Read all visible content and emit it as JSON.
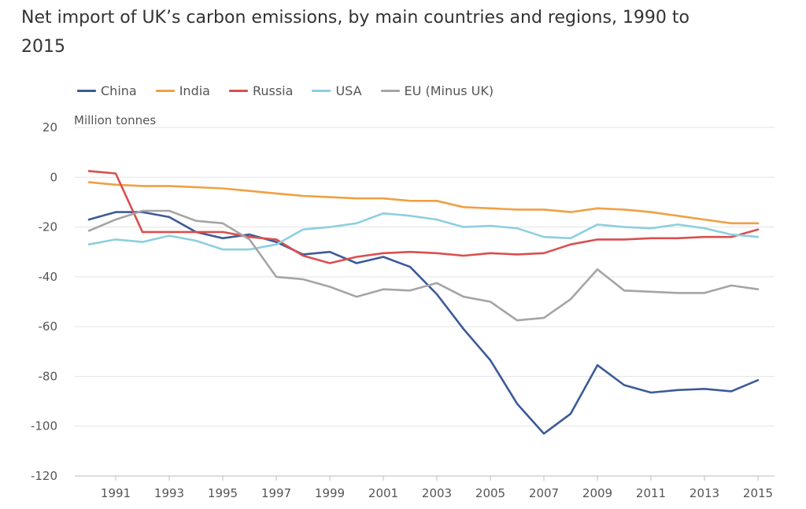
{
  "chart_data": {
    "type": "line",
    "title": "Net import of UK’s carbon emissions, by main countries and regions, 1990 to 2015",
    "ylabel": "Million tonnes",
    "xlabel": "",
    "x": [
      1990,
      1991,
      1992,
      1993,
      1994,
      1995,
      1996,
      1997,
      1998,
      1999,
      2000,
      2001,
      2002,
      2003,
      2004,
      2005,
      2006,
      2007,
      2008,
      2009,
      2010,
      2011,
      2012,
      2013,
      2014,
      2015
    ],
    "xticks": [
      1991,
      1993,
      1995,
      1997,
      1999,
      2001,
      2003,
      2005,
      2007,
      2009,
      2011,
      2013,
      2015
    ],
    "ylim": [
      -120,
      20
    ],
    "yticks": [
      20,
      0,
      -20,
      -40,
      -60,
      -80,
      -100,
      -120
    ],
    "grid": "horizontal",
    "legend_position": "top-left",
    "series": [
      {
        "name": "China",
        "color": "#3d5a98",
        "values": [
          -17,
          -14,
          -14,
          -16,
          -22,
          -24.5,
          -23,
          -26,
          -31,
          -30,
          -34.5,
          -32,
          -36,
          -47,
          -61,
          -73.5,
          -91,
          -103,
          -95,
          -75.5,
          -83.5,
          -86.5,
          -85.5,
          -85,
          -86,
          -81.5
        ]
      },
      {
        "name": "India",
        "color": "#f0a044",
        "values": [
          -2,
          -3,
          -3.5,
          -3.5,
          -4,
          -4.5,
          -5.5,
          -6.5,
          -7.5,
          -8,
          -8.5,
          -8.5,
          -9.5,
          -9.5,
          -12,
          -12.5,
          -13,
          -13,
          -14,
          -12.5,
          -13,
          -14,
          -15.5,
          -17,
          -18.5,
          -18.5
        ]
      },
      {
        "name": "Russia",
        "color": "#d94f4f",
        "values": [
          2.5,
          1.5,
          -22,
          -22,
          -22,
          -22,
          -24,
          -25,
          -31.5,
          -34.5,
          -32,
          -30.5,
          -30,
          -30.5,
          -31.5,
          -30.5,
          -31,
          -30.5,
          -27,
          -25,
          -25,
          -24.5,
          -24.5,
          -24,
          -24,
          -21
        ]
      },
      {
        "name": "USA",
        "color": "#8ccfe0",
        "values": [
          -27,
          -25,
          -26,
          -23.5,
          -25.5,
          -29,
          -29,
          -27,
          -21,
          -20,
          -18.5,
          -14.5,
          -15.5,
          -17,
          -20,
          -19.5,
          -20.5,
          -24,
          -24.5,
          -19,
          -20,
          -20.5,
          -19,
          -20.5,
          -23,
          -24
        ]
      },
      {
        "name": "EU (Minus UK)",
        "color": "#a5a5a5",
        "values": [
          -21.5,
          -17,
          -13.5,
          -13.5,
          -17.5,
          -18.5,
          -25,
          -40,
          -41,
          -44,
          -48,
          -45,
          -45.5,
          -42.5,
          -48,
          -50,
          -57.5,
          -56.5,
          -49,
          -37,
          -45.5,
          -46,
          -46.5,
          -46.5,
          -43.5,
          -45
        ]
      }
    ]
  }
}
